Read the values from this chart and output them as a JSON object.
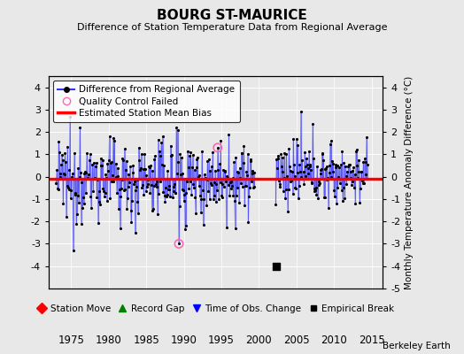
{
  "title": "BOURG ST-MAURICE",
  "subtitle": "Difference of Station Temperature Data from Regional Average",
  "ylabel": "Monthly Temperature Anomaly Difference (°C)",
  "xlabel_years": [
    1975,
    1980,
    1985,
    1990,
    1995,
    2000,
    2005,
    2010,
    2015
  ],
  "xlim": [
    1972.0,
    2016.5
  ],
  "ylim": [
    -5.0,
    4.5
  ],
  "yticks_left": [
    -4,
    -3,
    -2,
    -1,
    0,
    1,
    2,
    3,
    4
  ],
  "yticks_right": [
    -5,
    -4,
    -3,
    -2,
    -1,
    0,
    1,
    2,
    3,
    4
  ],
  "bias_line_y": -0.1,
  "line_color": "#3333ff",
  "line_alpha": 0.55,
  "line_width": 0.9,
  "dot_color": "#000000",
  "dot_size": 5,
  "bias_color": "#ff0000",
  "bias_linewidth": 2.5,
  "qc_color": "#ff69b4",
  "empirical_break_year": 2002.3,
  "empirical_break_y": -4.0,
  "background_color": "#e8e8e8",
  "plot_bg_color": "#e8e8e8",
  "watermark": "Berkeley Earth",
  "seed": 12345,
  "start_year": 1973.0,
  "end_year": 2014.5
}
